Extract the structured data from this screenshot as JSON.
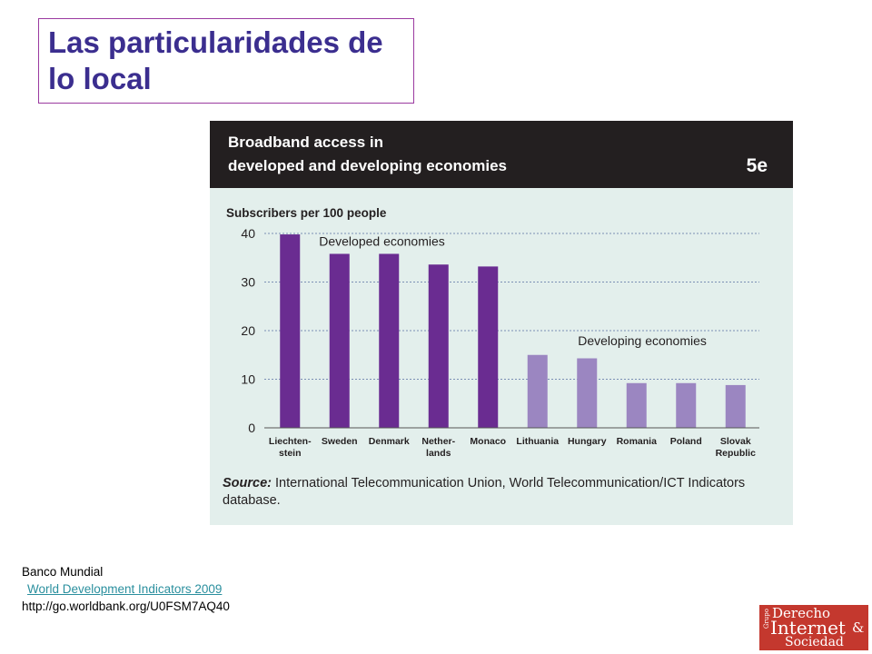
{
  "slide": {
    "title": "Las particularidades de lo local"
  },
  "chart_header": {
    "title_line1": "Broadband access in",
    "title_line2": "developed and developing economies",
    "code": "5e"
  },
  "chart_data": {
    "type": "bar",
    "ylabel": "Subscribers per 100 people",
    "ylim": [
      0,
      40
    ],
    "yticks": [
      0,
      10,
      20,
      30,
      40
    ],
    "grid": true,
    "categories": [
      "Liechten-stein",
      "Sweden",
      "Denmark",
      "Nether-lands",
      "Monaco",
      "Lithuania",
      "Hungary",
      "Romania",
      "Poland",
      "Slovak Republic"
    ],
    "category_lines": [
      [
        "Liechten-",
        "stein"
      ],
      [
        "Sweden"
      ],
      [
        "Denmark"
      ],
      [
        "Nether-",
        "lands"
      ],
      [
        "Monaco"
      ],
      [
        "Lithuania"
      ],
      [
        "Hungary"
      ],
      [
        "Romania"
      ],
      [
        "Poland"
      ],
      [
        "Slovak",
        "Republic"
      ]
    ],
    "values": [
      39.8,
      35.8,
      35.8,
      33.6,
      33.2,
      15,
      14.3,
      9.2,
      9.2,
      8.8
    ],
    "groups": [
      "developed",
      "developed",
      "developed",
      "developed",
      "developed",
      "developing",
      "developing",
      "developing",
      "developing",
      "developing"
    ],
    "annotations": {
      "developed": "Developed economies",
      "developing": "Developing economies"
    },
    "colors": {
      "developed": "#6a2c91",
      "developing": "#9b86c1",
      "grid": "#7b8fb4",
      "axis": "#555555"
    }
  },
  "source": {
    "label": "Source:",
    "text": " International Telecommunication Union, World Telecommunication/ICT Indicators database."
  },
  "credit": {
    "org": "Banco Mundial",
    "link_text": "World Development Indicators 2009",
    "url_text": "http://go.worldbank.org/U0FSM7AQ40"
  },
  "logo": {
    "grupo": "Grupo",
    "derecho": "Derecho",
    "internet": "Internet",
    "amp": "&",
    "sociedad": "Sociedad"
  }
}
